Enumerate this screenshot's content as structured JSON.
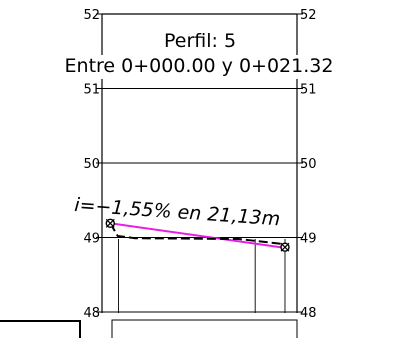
{
  "title": {
    "line1": "Perfil:  5",
    "line2": "Entre  0+000.00  y  0+021.32"
  },
  "slope_label": "i=−1,55%  en  21,13m",
  "chart_data": {
    "type": "line",
    "y_ticks": [
      52,
      51,
      50,
      49,
      48
    ],
    "ylim": [
      48,
      52
    ],
    "xlim": [
      0,
      21.32
    ],
    "grid": true,
    "series": [
      {
        "key": "design",
        "color": "#e61ee6",
        "style": "solid",
        "points": [
          [
            1.0,
            49.19
          ],
          [
            22.1,
            48.86
          ]
        ]
      },
      {
        "key": "terrain",
        "color": "#000000",
        "style": "dashed",
        "points": [
          [
            1.0,
            49.19
          ],
          [
            1.9,
            49.02
          ],
          [
            4.0,
            48.99
          ],
          [
            16.5,
            48.98
          ],
          [
            22.1,
            48.91
          ]
        ]
      }
    ],
    "markers": [
      {
        "x": 1.0,
        "y": 49.19
      },
      {
        "x": 22.1,
        "y": 48.87
      }
    ],
    "verticals": [
      2.0,
      18.5,
      22.1
    ]
  }
}
